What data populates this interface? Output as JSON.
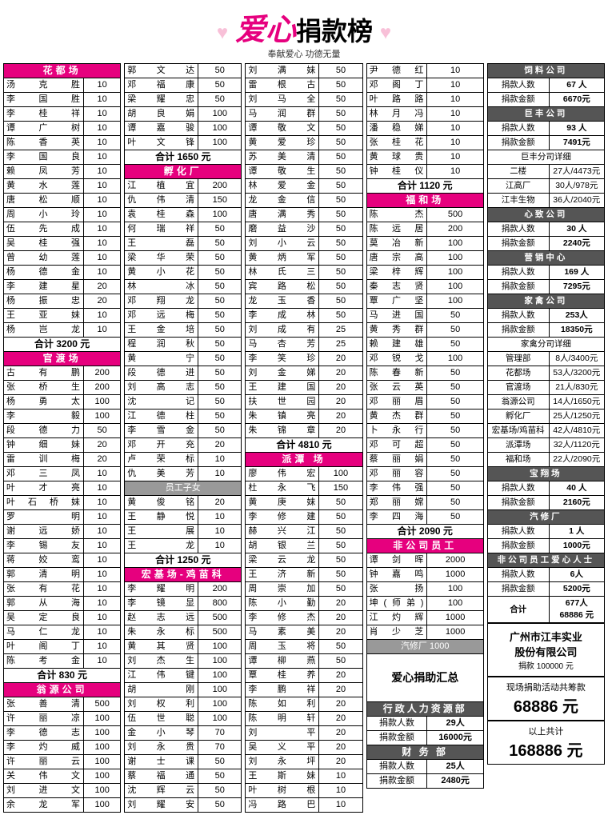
{
  "header": {
    "title_love": "爱心",
    "title_rest": "捐款榜",
    "subtitle": "奉献爱心 功德无量"
  },
  "col1": {
    "sections": [
      {
        "type": "pink",
        "name": "花都场",
        "rows": [
          [
            "汤克胜",
            "10"
          ],
          [
            "李国胜",
            "10"
          ],
          [
            "李桂祥",
            "10"
          ],
          [
            "谭广树",
            "10"
          ],
          [
            "陈香英",
            "10"
          ],
          [
            "李国良",
            "10"
          ],
          [
            "赖凤芳",
            "10"
          ],
          [
            "黄水莲",
            "10"
          ],
          [
            "唐松顺",
            "10"
          ],
          [
            "周小玲",
            "10"
          ],
          [
            "伍先成",
            "10"
          ],
          [
            "吴桂强",
            "10"
          ],
          [
            "曾幼莲",
            "10"
          ],
          [
            "杨德金",
            "10"
          ],
          [
            "李建星",
            "20"
          ],
          [
            "杨振忠",
            "20"
          ],
          [
            "王亚妹",
            "10"
          ],
          [
            "杨岂龙",
            "10"
          ]
        ],
        "total": "合计 3200 元"
      },
      {
        "type": "pink",
        "name": "官渡场",
        "rows": [
          [
            "古有鹏",
            "200"
          ],
          [
            "张桥生",
            "200"
          ],
          [
            "杨勇太",
            "100"
          ],
          [
            "李毅",
            "100"
          ],
          [
            "段德力",
            "50"
          ],
          [
            "钟细妹",
            "20"
          ],
          [
            "雷训梅",
            "20"
          ],
          [
            "邓三凤",
            "10"
          ],
          [
            "叶才亮",
            "10"
          ],
          [
            "叶石桥妹",
            "10"
          ],
          [
            "罗明",
            "10"
          ],
          [
            "谢远娇",
            "10"
          ],
          [
            "李锡友",
            "10"
          ],
          [
            "蒋姣鸾",
            "10"
          ],
          [
            "郭清明",
            "10"
          ],
          [
            "张有花",
            "10"
          ],
          [
            "郭从海",
            "10"
          ],
          [
            "吴定良",
            "10"
          ],
          [
            "马仁龙",
            "10"
          ],
          [
            "叶阁丁",
            "10"
          ],
          [
            "陈考金",
            "10"
          ]
        ],
        "total": "合计 830 元"
      },
      {
        "type": "pink",
        "name": "翁源公司",
        "rows": [
          [
            "张善清",
            "500"
          ],
          [
            "许丽凉",
            "100"
          ],
          [
            "李德志",
            "100"
          ],
          [
            "李灼威",
            "100"
          ],
          [
            "许丽云",
            "100"
          ],
          [
            "关伟文",
            "100"
          ],
          [
            "刘进文",
            "100"
          ],
          [
            "余龙军",
            "100"
          ]
        ]
      }
    ]
  },
  "col2": {
    "pre_rows": [
      [
        "郭文达",
        "50"
      ],
      [
        "邓福康",
        "50"
      ],
      [
        "梁耀忠",
        "50"
      ],
      [
        "胡良娟",
        "100"
      ],
      [
        "谭嘉骏",
        "100"
      ],
      [
        "叶文锋",
        "100"
      ]
    ],
    "pre_total": "合计 1650 元",
    "sections": [
      {
        "type": "pink",
        "name": "孵化厂",
        "rows": [
          [
            "江植宜",
            "200"
          ],
          [
            "仇伟清",
            "150"
          ],
          [
            "袁桂森",
            "100"
          ],
          [
            "何瑞祥",
            "50"
          ],
          [
            "王 磊",
            "50"
          ],
          [
            "梁华荣",
            "50"
          ],
          [
            "黄小花",
            "50"
          ],
          [
            "林 冰",
            "50"
          ],
          [
            "邓翔龙",
            "50"
          ],
          [
            "邓远梅",
            "50"
          ],
          [
            "王金培",
            "50"
          ],
          [
            "程润秋",
            "50"
          ],
          [
            "黄 宁",
            "50"
          ],
          [
            "段德进",
            "50"
          ],
          [
            "刘高志",
            "50"
          ],
          [
            "沈 记",
            "50"
          ],
          [
            "江德柱",
            "50"
          ],
          [
            "李雪金",
            "50"
          ],
          [
            "邓开充",
            "20"
          ],
          [
            "卢荣标",
            "10"
          ],
          [
            "仇美芳",
            "10"
          ]
        ]
      },
      {
        "type": "mid",
        "name": "员工子女",
        "rows": [
          [
            "黄俊铭",
            "20"
          ],
          [
            "王静悦",
            "10"
          ],
          [
            "王 展",
            "10"
          ],
          [
            "王 龙",
            "10"
          ]
        ],
        "total": "合计 1250 元"
      },
      {
        "type": "pink",
        "name": "宏基场-鸡苗科",
        "rows": [
          [
            "李耀明",
            "200"
          ],
          [
            "李镜显",
            "800"
          ],
          [
            "赵志远",
            "500"
          ],
          [
            "朱永标",
            "500"
          ],
          [
            "黄其贤",
            "100"
          ],
          [
            "刘杰生",
            "100"
          ],
          [
            "江伟键",
            "100"
          ],
          [
            "胡刚",
            "100"
          ],
          [
            "刘权利",
            "100"
          ],
          [
            "伍世聪",
            "100"
          ],
          [
            "金小琴",
            "70"
          ],
          [
            "刘永贵",
            "70"
          ],
          [
            "谢士课",
            "50"
          ],
          [
            "蔡福通",
            "50"
          ],
          [
            "沈辉云",
            "50"
          ],
          [
            "刘耀安",
            "50"
          ]
        ]
      }
    ]
  },
  "col3": {
    "pre_rows": [
      [
        "刘满妹",
        "50"
      ],
      [
        "雷根古",
        "50"
      ],
      [
        "刘马全",
        "50"
      ],
      [
        "马润群",
        "50"
      ],
      [
        "谭敬文",
        "50"
      ],
      [
        "黄爱珍",
        "50"
      ],
      [
        "苏美清",
        "50"
      ],
      [
        "谭敬生",
        "50"
      ],
      [
        "林爱金",
        "50"
      ],
      [
        "龙金信",
        "50"
      ],
      [
        "唐满秀",
        "50"
      ],
      [
        "磨益沙",
        "50"
      ],
      [
        "刘小云",
        "50"
      ],
      [
        "黄炳军",
        "50"
      ],
      [
        "林氏三",
        "50"
      ],
      [
        "宾路松",
        "50"
      ],
      [
        "龙玉香",
        "50"
      ],
      [
        "李成林",
        "50"
      ],
      [
        "刘成有",
        "25"
      ],
      [
        "马杏芳",
        "25"
      ],
      [
        "李笑珍",
        "20"
      ],
      [
        "刘金娣",
        "20"
      ],
      [
        "王建国",
        "20"
      ],
      [
        "扶世园",
        "20"
      ],
      [
        "朱镇亮",
        "20"
      ],
      [
        "朱锦章",
        "20"
      ]
    ],
    "pre_total": "合计 4810 元",
    "sections": [
      {
        "type": "pink",
        "name": "派潭 场",
        "rows": [
          [
            "廖伟宏",
            "100"
          ],
          [
            "杜永飞",
            "150"
          ],
          [
            "黄庚妹",
            "50"
          ],
          [
            "李修建",
            "50"
          ],
          [
            "赫兴江",
            "50"
          ],
          [
            "胡银兰",
            "50"
          ],
          [
            "梁云龙",
            "50"
          ],
          [
            "王济新",
            "50"
          ],
          [
            "周崇加",
            "50"
          ],
          [
            "陈小勤",
            "20"
          ],
          [
            "李修杰",
            "20"
          ],
          [
            "马素美",
            "20"
          ],
          [
            "周玉将",
            "50"
          ],
          [
            "谭柳燕",
            "50"
          ],
          [
            "覃桂养",
            "20"
          ],
          [
            "李鹏祥",
            "20"
          ],
          [
            "陈如利",
            "20"
          ],
          [
            "陈明轩",
            "20"
          ],
          [
            "刘平",
            "20"
          ],
          [
            "吴义平",
            "20"
          ],
          [
            "刘永坪",
            "20"
          ],
          [
            "王斯妹",
            "10"
          ],
          [
            "叶树根",
            "10"
          ],
          [
            "冯路巴",
            "10"
          ]
        ]
      }
    ]
  },
  "col4": {
    "pre_rows": [
      [
        "尹德红",
        "10"
      ],
      [
        "邓阁丁",
        "10"
      ],
      [
        "叶路路",
        "10"
      ],
      [
        "林月冯",
        "10"
      ],
      [
        "潘稳娣",
        "10"
      ],
      [
        "张桂花",
        "10"
      ],
      [
        "黄球贵",
        "10"
      ],
      [
        "钟桂仪",
        "10"
      ]
    ],
    "pre_total": "合计 1120 元",
    "sections": [
      {
        "type": "pink",
        "name": "福和场",
        "rows": [
          [
            "陈杰",
            "500"
          ],
          [
            "陈远居",
            "200"
          ],
          [
            "莫冶新",
            "100"
          ],
          [
            "唐宗高",
            "100"
          ],
          [
            "梁梓辉",
            "100"
          ],
          [
            "秦志贤",
            "100"
          ],
          [
            "覃广坚",
            "100"
          ],
          [
            "马进国",
            "50"
          ],
          [
            "黄秀群",
            "50"
          ],
          [
            "赖建雄",
            "50"
          ],
          [
            "邓锐戈",
            "100"
          ],
          [
            "陈春新",
            "50"
          ],
          [
            "张云英",
            "50"
          ],
          [
            "邓丽眉",
            "50"
          ],
          [
            "黄杰群",
            "50"
          ],
          [
            "卜永行",
            "50"
          ],
          [
            "邓可超",
            "50"
          ],
          [
            "蔡丽娟",
            "50"
          ],
          [
            "邓丽容",
            "50"
          ],
          [
            "李伟强",
            "50"
          ],
          [
            "郑丽嫦",
            "50"
          ],
          [
            "李四海",
            "50"
          ]
        ],
        "total": "合计 2090 元"
      },
      {
        "type": "pink",
        "name": "非公司员工",
        "rows": [
          [
            "谭剑晖",
            "2000"
          ],
          [
            "钟嘉鸣",
            "1000"
          ],
          [
            "张扬",
            "100"
          ],
          [
            "坤(师弟)",
            "100"
          ],
          [
            "江灼辉",
            "1000"
          ],
          [
            "肖少芝",
            "1000"
          ]
        ]
      }
    ],
    "tail": {
      "grey_title": "汽修厂 1000",
      "box_text": "爱心捐助汇总",
      "depts": [
        {
          "name": "行政人力资源部",
          "rows": [
            [
              "捐款人数",
              "29人"
            ],
            [
              "捐款金额",
              "16000元"
            ]
          ]
        },
        {
          "name": "财 务 部",
          "rows": [
            [
              "捐款人数",
              "25人"
            ],
            [
              "捐款金额",
              "2480元"
            ]
          ]
        }
      ]
    }
  },
  "col5": {
    "blocks": [
      {
        "type": "dark",
        "name": "饲料公司",
        "rows": [
          [
            "捐款人数",
            "67 人"
          ],
          [
            "捐款金额",
            "6670元"
          ]
        ]
      },
      {
        "type": "dark",
        "name": "巨丰公司",
        "rows": [
          [
            "捐款人数",
            "93 人"
          ],
          [
            "捐款金额",
            "7491元"
          ]
        ],
        "more_label": "巨丰分司详细",
        "more": [
          [
            "二楼",
            "27人/4473元"
          ],
          [
            "江高厂",
            "30人/978元"
          ],
          [
            "江丰生物",
            "36人/2040元"
          ]
        ]
      },
      {
        "type": "dark",
        "name": "心致公司",
        "rows": [
          [
            "捐款人数",
            "30 人"
          ],
          [
            "捐款金额",
            "2240元"
          ]
        ]
      },
      {
        "type": "dark",
        "name": "营销中心",
        "rows": [
          [
            "捐款人数",
            "169 人"
          ],
          [
            "捐款金额",
            "7295元"
          ]
        ]
      },
      {
        "type": "dark",
        "name": "家禽公司",
        "rows": [
          [
            "捐款人数",
            "253人"
          ],
          [
            "捐款金额",
            "18350元"
          ]
        ],
        "more_label": "家禽分司详细",
        "more": [
          [
            "管理部",
            "8人/3400元"
          ],
          [
            "花都场",
            "53人/3200元"
          ],
          [
            "官渡场",
            "21人/830元"
          ],
          [
            "翁源公司",
            "14人/1650元"
          ],
          [
            "孵化厂",
            "25人/1250元"
          ],
          [
            "宏基场/鸡苗科",
            "42人/4810元"
          ],
          [
            "派潭场",
            "32人/1120元"
          ],
          [
            "福和场",
            "22人/2090元"
          ]
        ]
      },
      {
        "type": "dark",
        "name": "宝翔场",
        "rows": [
          [
            "捐款人数",
            "40 人"
          ],
          [
            "捐款金额",
            "2160元"
          ]
        ]
      },
      {
        "type": "dark",
        "name": "汽修厂",
        "rows": [
          [
            "捐款人数",
            "1 人"
          ],
          [
            "捐款金额",
            "1000元"
          ]
        ]
      },
      {
        "type": "dark",
        "name": "非公司员工爱心人士",
        "rows": [
          [
            "捐款人数",
            "6人"
          ],
          [
            "捐款金额",
            "5200元"
          ]
        ]
      }
    ],
    "sum1": {
      "label": "合计",
      "people": "677人",
      "money": "68886 元"
    },
    "company": {
      "name1": "广州市江丰实业",
      "name2": "股份有限公司",
      "line": "捐款 100000 元"
    },
    "stats": [
      {
        "label": "现场捐助活动共筹款",
        "num": "68886 元"
      },
      {
        "label": "以上共计",
        "num": "168886 元"
      }
    ]
  }
}
